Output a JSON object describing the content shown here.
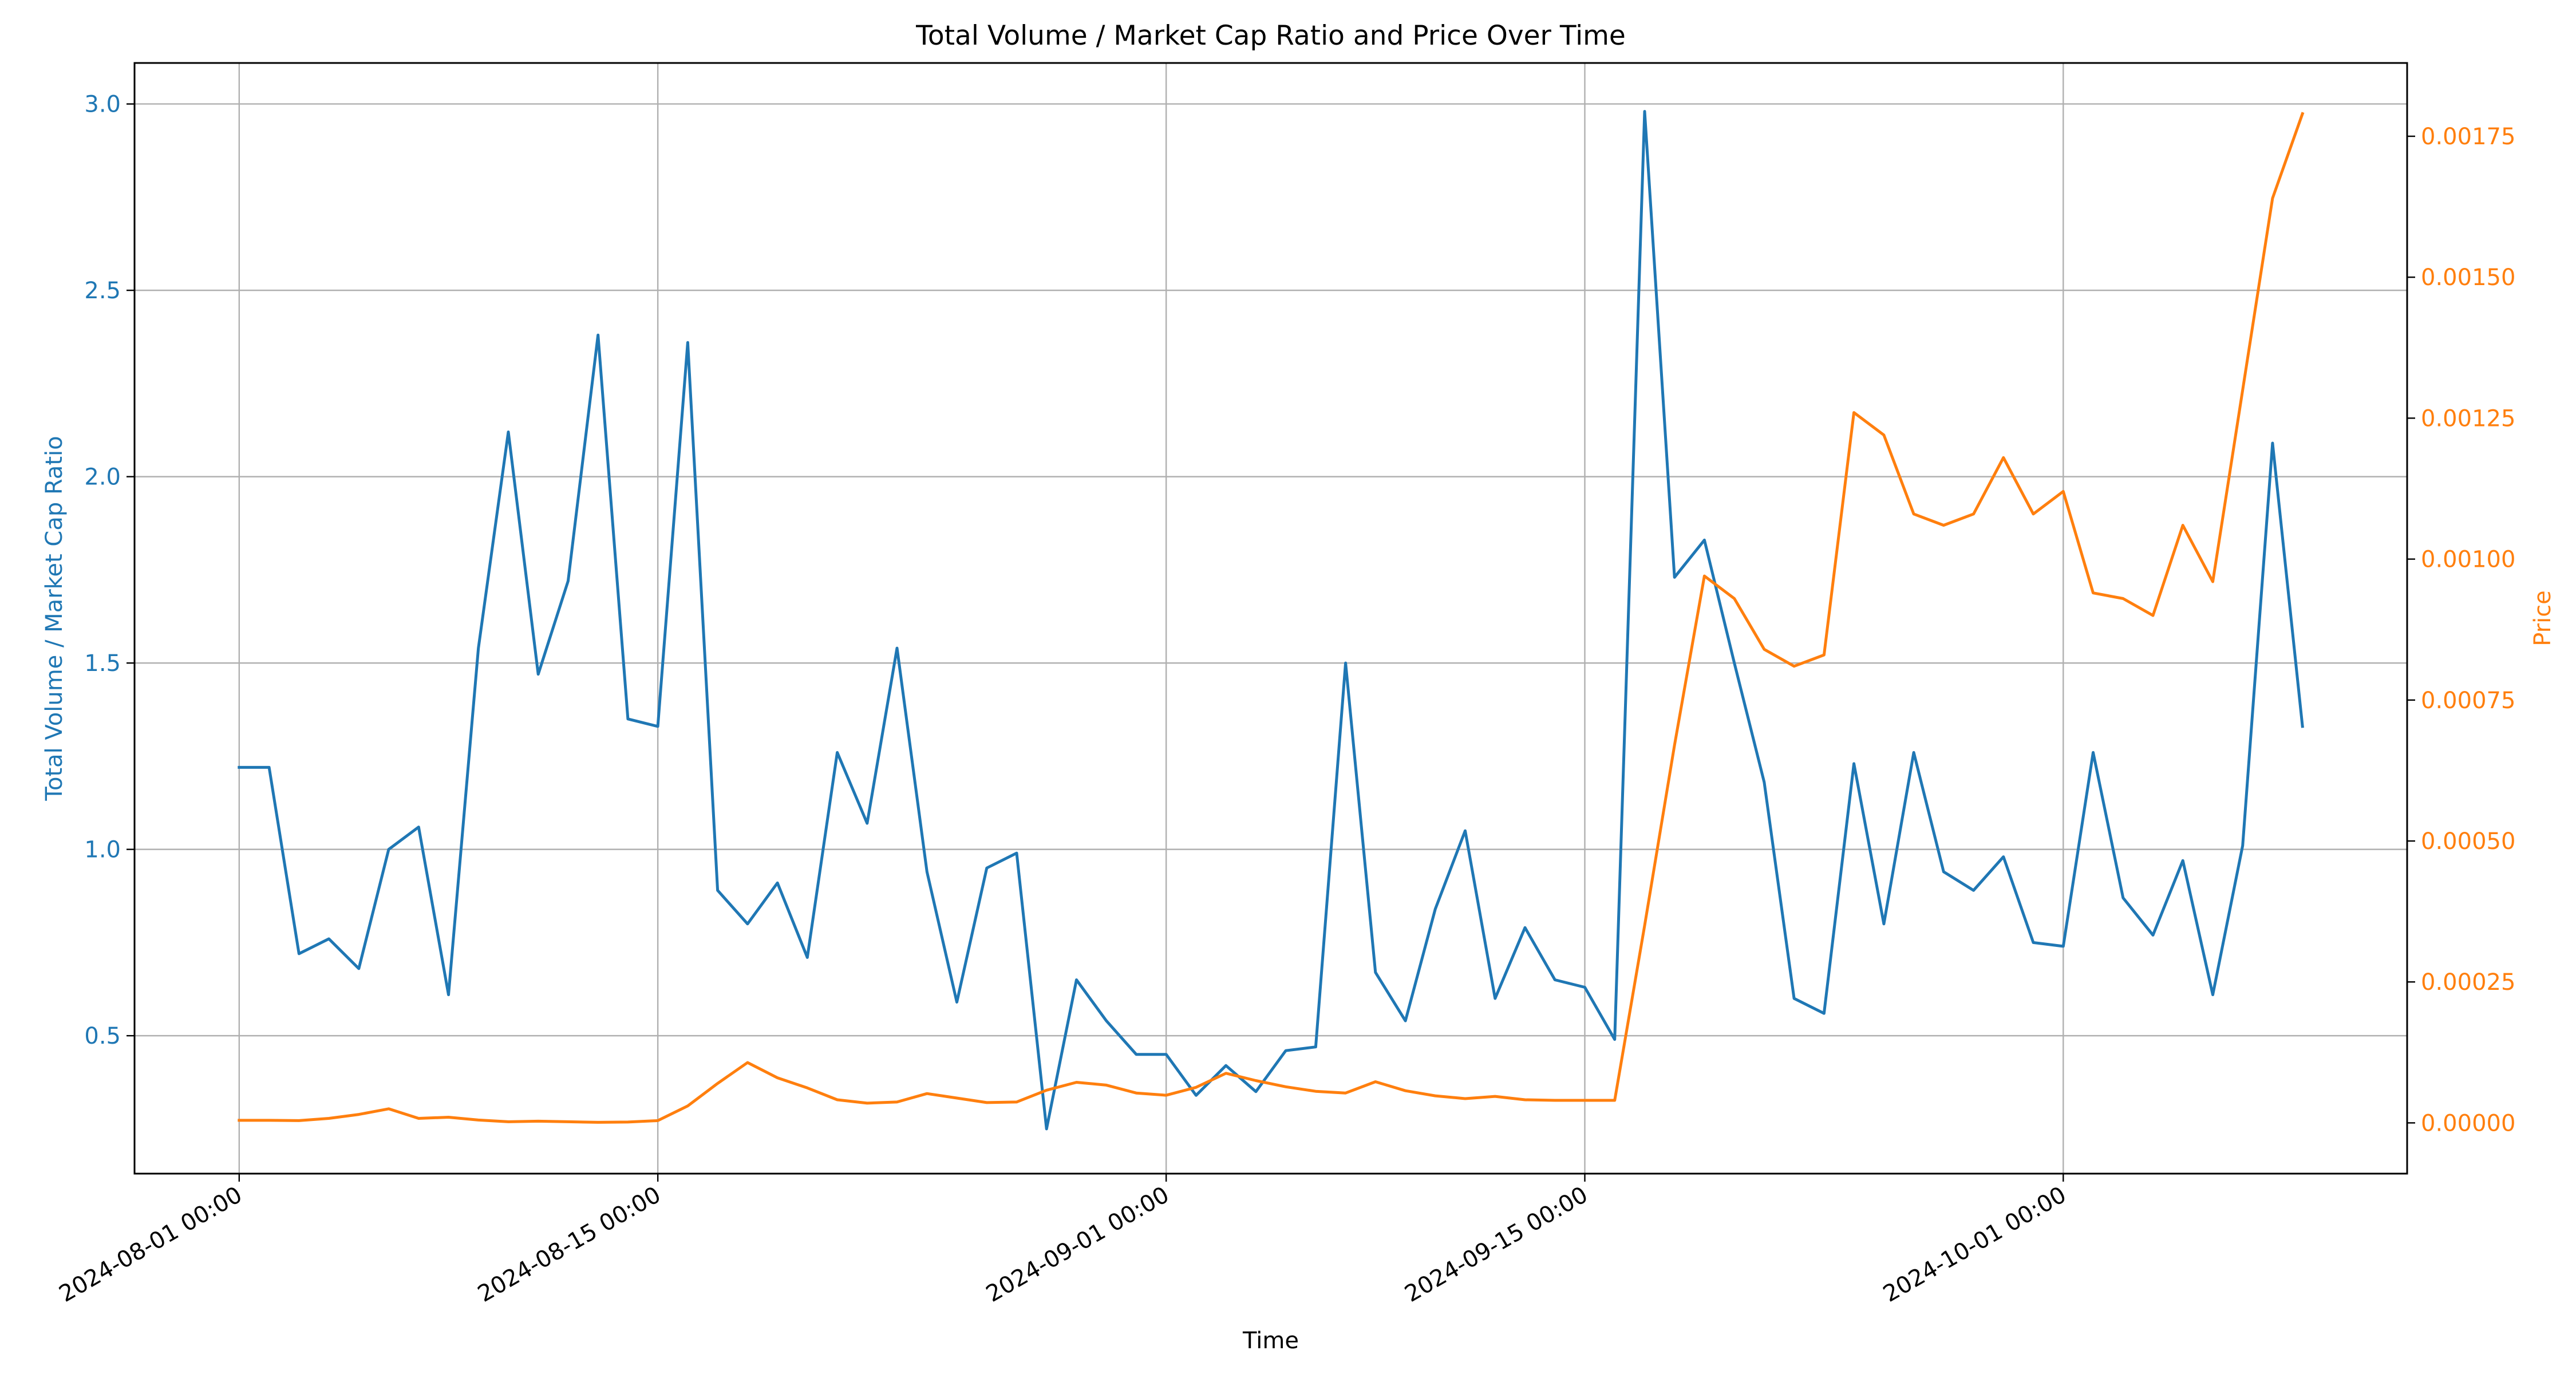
{
  "chart_data": {
    "type": "line",
    "title": "Total Volume / Market Cap Ratio and Price Over Time",
    "xlabel": "Time",
    "ylabel_left": "Total Volume / Market Cap Ratio",
    "ylabel_right": "Price",
    "x_ticks": [
      "2024-08-01 00:00",
      "2024-08-15 00:00",
      "2024-09-01 00:00",
      "2024-09-15 00:00",
      "2024-10-01 00:00"
    ],
    "x_tick_days": [
      0,
      14,
      31,
      45,
      61
    ],
    "y_left_ticks": [
      0.5,
      1.0,
      1.5,
      2.0,
      2.5,
      3.0
    ],
    "y_left_tick_labels": [
      "0.5",
      "1.0",
      "1.5",
      "2.0",
      "2.5",
      "3.0"
    ],
    "y_left_range": [
      0.13,
      3.11
    ],
    "y_right_ticks": [
      0,
      0.00025,
      0.0005,
      0.00075,
      0.001,
      0.00125,
      0.0015,
      0.00175
    ],
    "y_right_tick_labels": [
      "0.00000",
      "0.00025",
      "0.00050",
      "0.00075",
      "0.00100",
      "0.00125",
      "0.00150",
      "0.00175"
    ],
    "y_right_range": [
      -9e-05,
      0.00188
    ],
    "x_range_days": [
      -3.5,
      72.5
    ],
    "grid": true,
    "colors": {
      "ratio": "#1f77b4",
      "price": "#ff7f0e"
    },
    "x_days": [
      0,
      1,
      2,
      3,
      4,
      5,
      6,
      7,
      8,
      9,
      10,
      11,
      12,
      13,
      14,
      15,
      16,
      17,
      18,
      19,
      20,
      21,
      22,
      23,
      24,
      25,
      26,
      27,
      28,
      29,
      30,
      31,
      32,
      33,
      34,
      35,
      36,
      37,
      38,
      39,
      40,
      41,
      42,
      43,
      44,
      45,
      46,
      47,
      48,
      49,
      50,
      51,
      52,
      53,
      54,
      55,
      56,
      57,
      58,
      59,
      60,
      61,
      62,
      63,
      64,
      65,
      66,
      67,
      68,
      69
    ],
    "series": [
      {
        "key": "ratio",
        "axis": "left",
        "values": [
          1.22,
          1.22,
          0.72,
          0.76,
          0.68,
          1.0,
          1.06,
          0.61,
          1.54,
          2.12,
          1.47,
          1.72,
          2.38,
          1.35,
          1.33,
          2.36,
          0.89,
          0.8,
          0.91,
          0.71,
          1.26,
          1.07,
          1.54,
          0.94,
          0.59,
          0.95,
          0.99,
          0.25,
          0.65,
          0.54,
          0.45,
          0.45,
          0.34,
          0.42,
          0.35,
          0.46,
          0.47,
          1.5,
          0.67,
          0.54,
          0.84,
          1.05,
          0.6,
          0.79,
          0.65,
          0.63,
          0.49,
          2.98,
          1.73,
          1.83,
          1.5,
          1.18,
          0.6,
          0.56,
          1.23,
          0.8,
          1.26,
          0.94,
          0.89,
          0.98,
          0.75,
          0.74,
          1.26,
          0.87,
          0.77,
          0.97,
          0.61,
          1.01,
          2.09,
          1.33
        ]
      },
      {
        "key": "price",
        "axis": "right",
        "values": [
          4.5e-06,
          4.5e-06,
          4e-06,
          8e-06,
          1.5e-05,
          2.5e-05,
          8e-06,
          1e-05,
          5e-06,
          2e-06,
          3e-06,
          2e-06,
          1e-06,
          1.5e-06,
          4e-06,
          3e-05,
          7e-05,
          0.000107,
          8e-05,
          6.2e-05,
          4.1e-05,
          3.5e-05,
          3.7e-05,
          5.2e-05,
          4.4e-05,
          3.6e-05,
          3.7e-05,
          5.8e-05,
          7.2e-05,
          6.7e-05,
          5.3e-05,
          4.9e-05,
          6.3e-05,
          8.8e-05,
          7.5e-05,
          6.4e-05,
          5.6e-05,
          5.3e-05,
          7.3e-05,
          5.7e-05,
          4.8e-05,
          4.3e-05,
          4.7e-05,
          4.1e-05,
          4e-05,
          4e-05,
          4e-05,
          0.00035,
          0.00067,
          0.00097,
          0.00093,
          0.00084,
          0.00081,
          0.00083,
          0.00126,
          0.00122,
          0.00108,
          0.00106,
          0.00108,
          0.00118,
          0.00108,
          0.00112,
          0.00094,
          0.00093,
          0.0009,
          0.00106,
          0.00096,
          0.0013,
          0.00164,
          0.00179
        ]
      }
    ]
  }
}
